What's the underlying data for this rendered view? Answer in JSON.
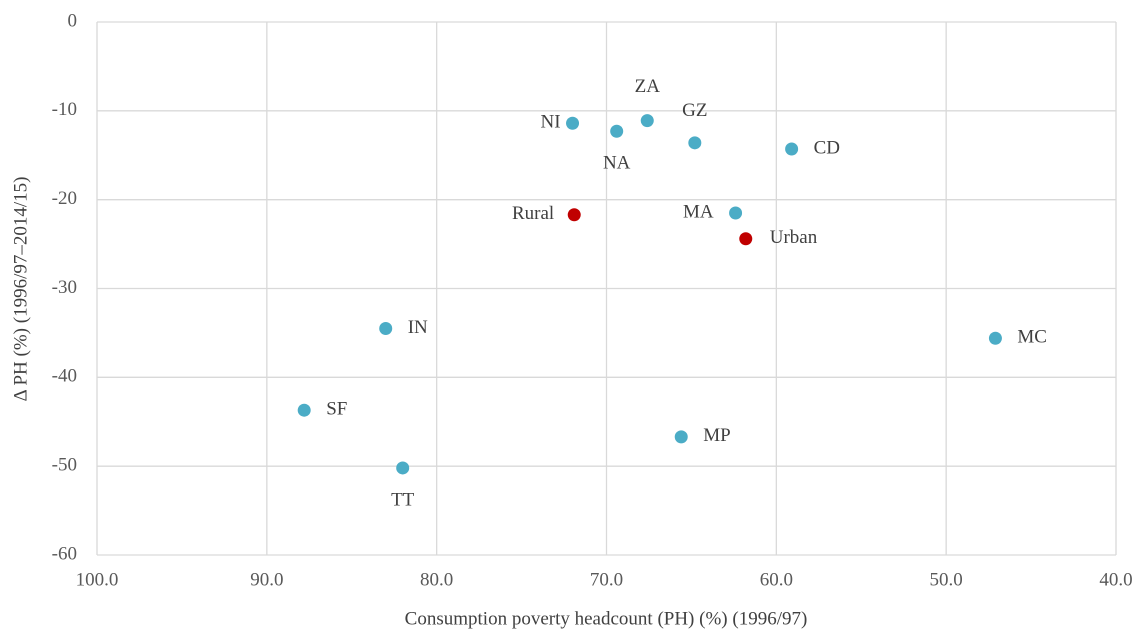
{
  "chart_data": {
    "type": "scatter",
    "xlabel": "Consumption poverty headcount (PH) (%) (1996/97)",
    "ylabel": "Δ PH (%) (1996/97–2014/15)",
    "xlim": [
      100,
      40
    ],
    "xticks": [
      {
        "value": 100,
        "label": "100.0"
      },
      {
        "value": 90,
        "label": "90.0"
      },
      {
        "value": 80,
        "label": "80.0"
      },
      {
        "value": 70,
        "label": "70.0"
      },
      {
        "value": 60,
        "label": "60.0"
      },
      {
        "value": 50,
        "label": "50.0"
      },
      {
        "value": 40,
        "label": "40.0"
      }
    ],
    "ylim": [
      -60,
      0
    ],
    "yticks": [
      0,
      -10,
      -20,
      -30,
      -40,
      -50,
      -60
    ],
    "grid": true,
    "series": [
      {
        "color": "#4bacc6",
        "labels": [
          "NI",
          "NA",
          "ZA",
          "GZ",
          "CD",
          "MA",
          "IN",
          "MC",
          "SF",
          "MP",
          "TT"
        ],
        "x": [
          72.0,
          69.4,
          67.6,
          64.8,
          59.1,
          62.4,
          83.0,
          47.1,
          87.8,
          65.6,
          82.0
        ],
        "values": [
          -11.4,
          -12.3,
          -11.1,
          -13.6,
          -14.3,
          -21.5,
          -34.5,
          -35.6,
          -43.7,
          -46.7,
          -50.2
        ]
      },
      {
        "color": "#c00000",
        "labels": [
          "Rural",
          "Urban"
        ],
        "x": [
          71.9,
          61.8
        ],
        "values": [
          -21.7,
          -24.4
        ]
      }
    ]
  }
}
